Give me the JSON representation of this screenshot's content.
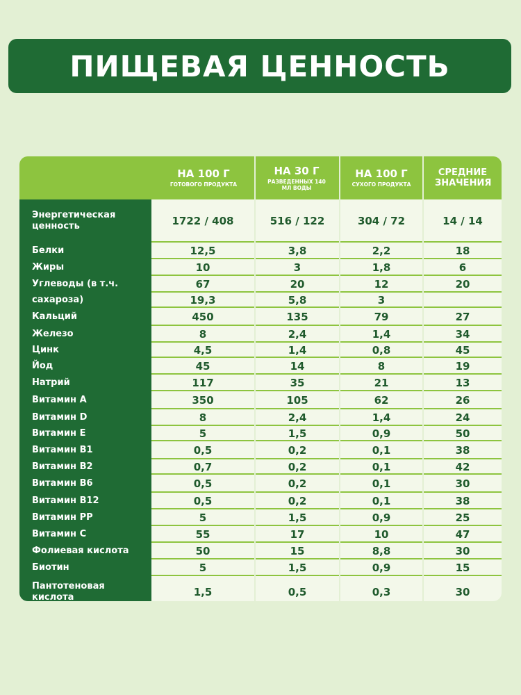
{
  "title": "ПИЩЕВАЯ ЦЕННОСТЬ",
  "columns": [
    {
      "main": "НА 100 Г",
      "sub": "ГОТОВОГО ПРОДУКТА"
    },
    {
      "main": "НА 30 Г",
      "sub": "РАЗВЕДЕННЫХ 140 МЛ ВОДЫ"
    },
    {
      "main": "НА 100 Г",
      "sub": "СУХОГО ПРОДУКТА"
    },
    {
      "main": "СРЕДНИЕ ЗНАЧЕНИЯ",
      "sub": ""
    }
  ],
  "rows": [
    {
      "label": "Энергетическая ценность",
      "values": [
        "1722 / 408",
        "516 / 122",
        "304 / 72",
        "14 / 14"
      ]
    },
    {
      "label": "Белки",
      "values": [
        "12,5",
        "3,8",
        "2,2",
        "18"
      ]
    },
    {
      "label": "Жиры",
      "values": [
        "10",
        "3",
        "1,8",
        "6"
      ]
    },
    {
      "label": "Углеводы (в т.ч.",
      "values": [
        "67",
        "20",
        "12",
        "20"
      ]
    },
    {
      "label": "сахароза)",
      "values": [
        "19,3",
        "5,8",
        "3",
        ""
      ]
    },
    {
      "label": "Кальций",
      "values": [
        "450",
        "135",
        "79",
        "27"
      ]
    },
    {
      "label": "Железо",
      "values": [
        "8",
        "2,4",
        "1,4",
        "34"
      ]
    },
    {
      "label": "Цинк",
      "values": [
        "4,5",
        "1,4",
        "0,8",
        "45"
      ]
    },
    {
      "label": "Йод",
      "values": [
        "45",
        "14",
        "8",
        "19"
      ]
    },
    {
      "label": "Натрий",
      "values": [
        "117",
        "35",
        "21",
        "13"
      ]
    },
    {
      "label": "Витамин A",
      "values": [
        "350",
        "105",
        "62",
        "26"
      ]
    },
    {
      "label": "Витамин D",
      "values": [
        "8",
        "2,4",
        "1,4",
        "24"
      ]
    },
    {
      "label": "Витамин E",
      "values": [
        "5",
        "1,5",
        "0,9",
        "50"
      ]
    },
    {
      "label": "Витамин B1",
      "values": [
        "0,5",
        "0,2",
        "0,1",
        "38"
      ]
    },
    {
      "label": "Витамин B2",
      "values": [
        "0,7",
        "0,2",
        "0,1",
        "42"
      ]
    },
    {
      "label": "Витамин B6",
      "values": [
        "0,5",
        "0,2",
        "0,1",
        "30"
      ]
    },
    {
      "label": "Витамин B12",
      "values": [
        "0,5",
        "0,2",
        "0,1",
        "38"
      ]
    },
    {
      "label": "Витамин PP",
      "values": [
        "5",
        "1,5",
        "0,9",
        "25"
      ]
    },
    {
      "label": "Витамин C",
      "values": [
        "55",
        "17",
        "10",
        "47"
      ]
    },
    {
      "label": "Фолиевая кислота",
      "values": [
        "50",
        "15",
        "8,8",
        "30"
      ]
    },
    {
      "label": "Биотин",
      "values": [
        "5",
        "1,5",
        "0,9",
        "15"
      ]
    },
    {
      "label": "Пантотеновая кислота",
      "values": [
        "1,5",
        "0,5",
        "0,3",
        "30"
      ]
    }
  ]
}
